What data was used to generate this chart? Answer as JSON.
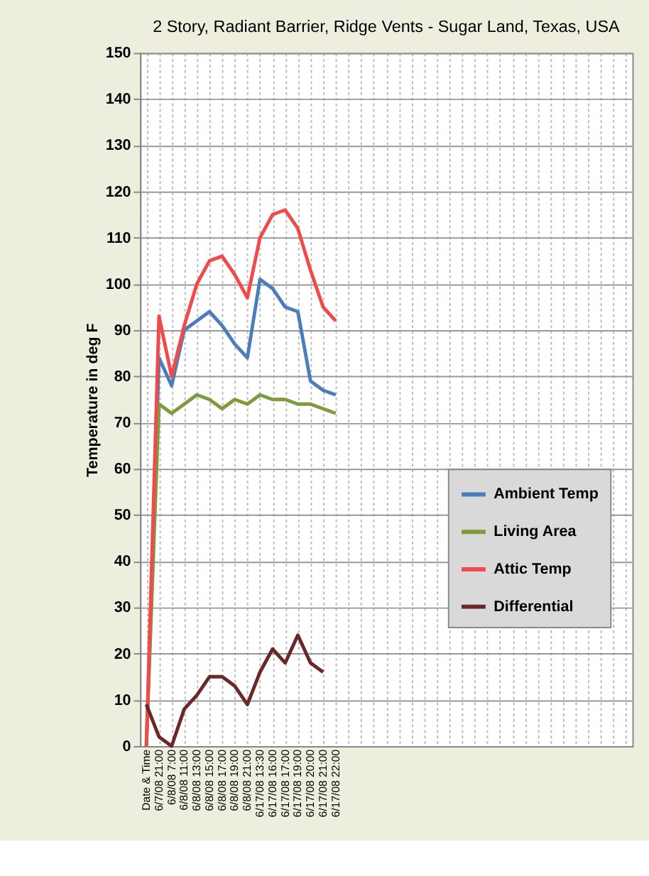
{
  "chart_data": {
    "type": "line",
    "title": "2 Story, Radiant Barrier, Ridge Vents - Sugar Land, Texas, USA",
    "ylabel": "Temperature in deg F",
    "categories": [
      "Date & Time",
      "6/7/08 21:00",
      "6/8/08 7:00",
      "6/8/08 11:00",
      "6/8/08 13:00",
      "6/8/08 15:00",
      "6/8/08 17:00",
      "6/8/08 19:00",
      "6/8/08 21:00",
      "6/17/08 13:30",
      "6/17/08 16:00",
      "6/17/08 17:00",
      "6/17/08 19:00",
      "6/17/08 20:00",
      "6/17/08 21:00",
      "6/17/08 22:00",
      null,
      null,
      null,
      null,
      null,
      null,
      null,
      null,
      null,
      null,
      null,
      null,
      null,
      null,
      null,
      null,
      null,
      null,
      null,
      null,
      null,
      null,
      null
    ],
    "series": [
      {
        "name": "Ambient Temp",
        "color": "#4a7ebb",
        "values": [
          0,
          84,
          78,
          90,
          92,
          94,
          91,
          87,
          84,
          101,
          99,
          95,
          94,
          79,
          77,
          76,
          null,
          null,
          null,
          null,
          null,
          null,
          null,
          null,
          null,
          null,
          null,
          null,
          null,
          null,
          null,
          null,
          null,
          null,
          null,
          null,
          null,
          null,
          null
        ]
      },
      {
        "name": "Living Area",
        "color": "#7f9a3f",
        "values": [
          0,
          74,
          72,
          74,
          76,
          75,
          73,
          75,
          74,
          76,
          75,
          75,
          74,
          74,
          73,
          72,
          null,
          null,
          null,
          null,
          null,
          null,
          null,
          null,
          null,
          null,
          null,
          null,
          null,
          null,
          null,
          null,
          null,
          null,
          null,
          null,
          null,
          null,
          null
        ]
      },
      {
        "name": "Attic Temp",
        "color": "#f04a4a",
        "values": [
          0,
          93,
          80,
          91,
          100,
          105,
          106,
          102,
          97,
          110,
          115,
          116,
          112,
          103,
          95,
          92,
          null,
          null,
          null,
          null,
          null,
          null,
          null,
          null,
          null,
          null,
          null,
          null,
          null,
          null,
          null,
          null,
          null,
          null,
          null,
          null,
          null,
          null,
          null
        ]
      },
      {
        "name": "Differential",
        "color": "#6b2828",
        "values": [
          9,
          2,
          0,
          8,
          11,
          15,
          15,
          13,
          9,
          16,
          21,
          18,
          24,
          18,
          16,
          null,
          null,
          null,
          null,
          null,
          null,
          null,
          null,
          null,
          null,
          null,
          null,
          null,
          null,
          null,
          null,
          null,
          null,
          null,
          null,
          null,
          null,
          null,
          null
        ]
      }
    ],
    "ylim": [
      0,
      150
    ],
    "yticks": [
      0,
      10,
      20,
      30,
      40,
      50,
      60,
      70,
      80,
      90,
      100,
      110,
      120,
      130,
      140,
      150
    ],
    "grid": true,
    "legend": "right",
    "marker": "none",
    "line_style": "solid"
  }
}
